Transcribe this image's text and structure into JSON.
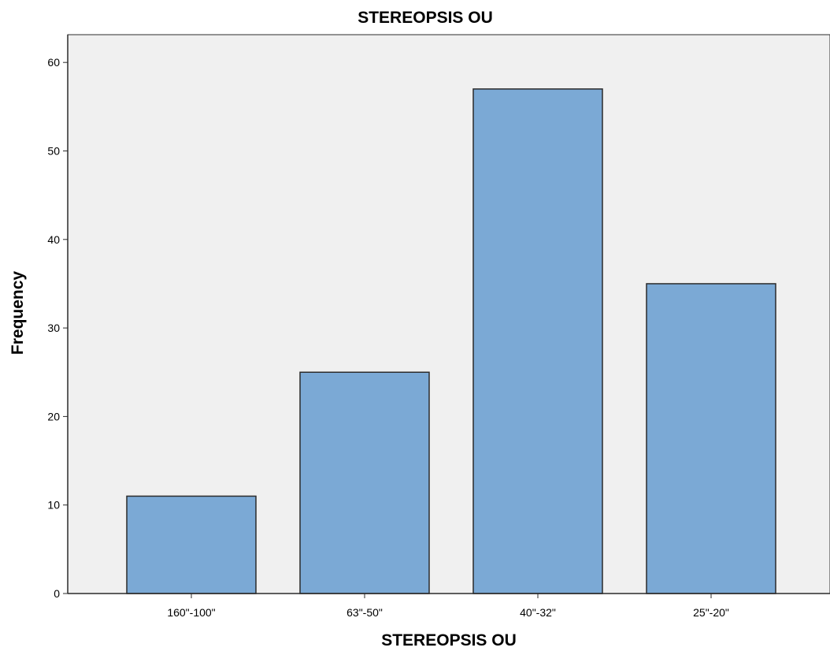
{
  "chart_data": {
    "type": "bar",
    "title": "STEREOPSIS OU",
    "xlabel": "STEREOPSIS OU",
    "ylabel": "Frequency",
    "categories": [
      "160\"-100\"",
      "63\"-50\"",
      "40\"-32\"",
      "25\"-20\""
    ],
    "values": [
      11,
      25,
      57,
      35
    ],
    "ylim": [
      0,
      64
    ],
    "yticks": [
      0,
      10,
      20,
      30,
      40,
      50,
      60
    ],
    "grid": false,
    "legend": "none",
    "colors": {
      "bar_fill": "#7ba9d5",
      "bar_stroke": "#2b2b2b",
      "plot_background": "#f0f0f0",
      "axis": "#2b2b2b"
    }
  }
}
